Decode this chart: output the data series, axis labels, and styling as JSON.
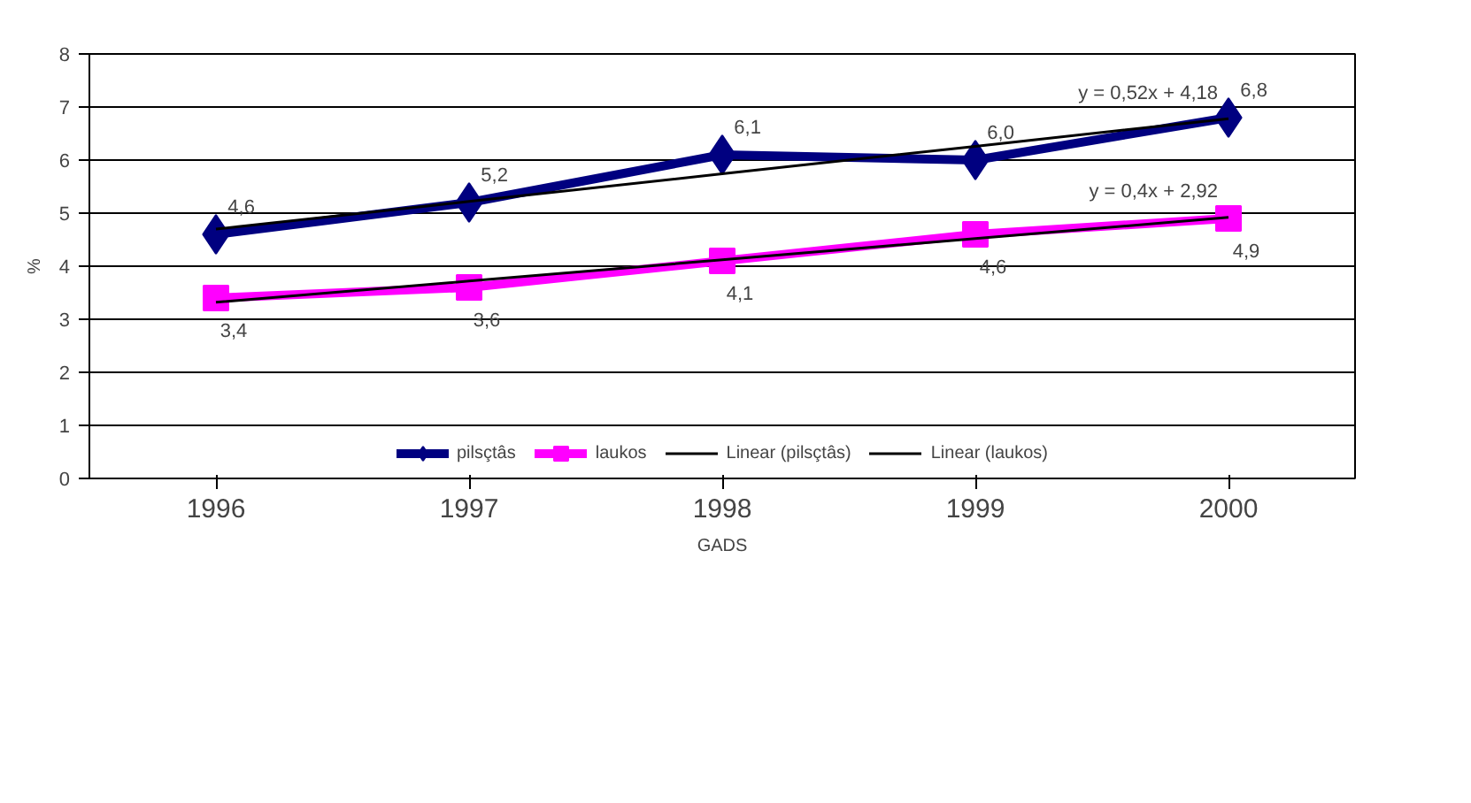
{
  "chart_data": {
    "type": "line",
    "xlabel": "GADS",
    "ylabel": "%",
    "categories": [
      "1996",
      "1997",
      "1998",
      "1999",
      "2000"
    ],
    "series": [
      {
        "name": "pilsçtâs",
        "color": "#000080",
        "marker": "diamond",
        "values": [
          4.6,
          5.2,
          6.1,
          6.0,
          6.8
        ],
        "value_labels": [
          "4,6",
          "5,2",
          "6,1",
          "6,0",
          "6,8"
        ]
      },
      {
        "name": "laukos",
        "color": "#ff00ff",
        "marker": "square",
        "values": [
          3.4,
          3.6,
          4.1,
          4.6,
          4.9
        ],
        "value_labels": [
          "3,4",
          "3,6",
          "4,1",
          "4,6",
          "4,9"
        ]
      },
      {
        "name": "Linear (pilsçtâs)",
        "color": "#000000",
        "marker": "none",
        "values": [
          4.7,
          5.22,
          5.74,
          6.26,
          6.78
        ]
      },
      {
        "name": "Linear (laukos)",
        "color": "#000000",
        "marker": "none",
        "values": [
          3.32,
          3.72,
          4.12,
          4.52,
          4.92
        ]
      }
    ],
    "annotations": [
      {
        "text": "y = 0,52x + 4,18",
        "x": "2000",
        "y": 7.05
      },
      {
        "text": "y = 0,4x + 2,92",
        "x": "2000",
        "y": 5.2
      }
    ],
    "ylim": [
      0,
      8
    ],
    "yticks": [
      0,
      1,
      2,
      3,
      4,
      5,
      6,
      7,
      8
    ],
    "grid": "y",
    "legend": "bottom",
    "line_style": "solid"
  }
}
